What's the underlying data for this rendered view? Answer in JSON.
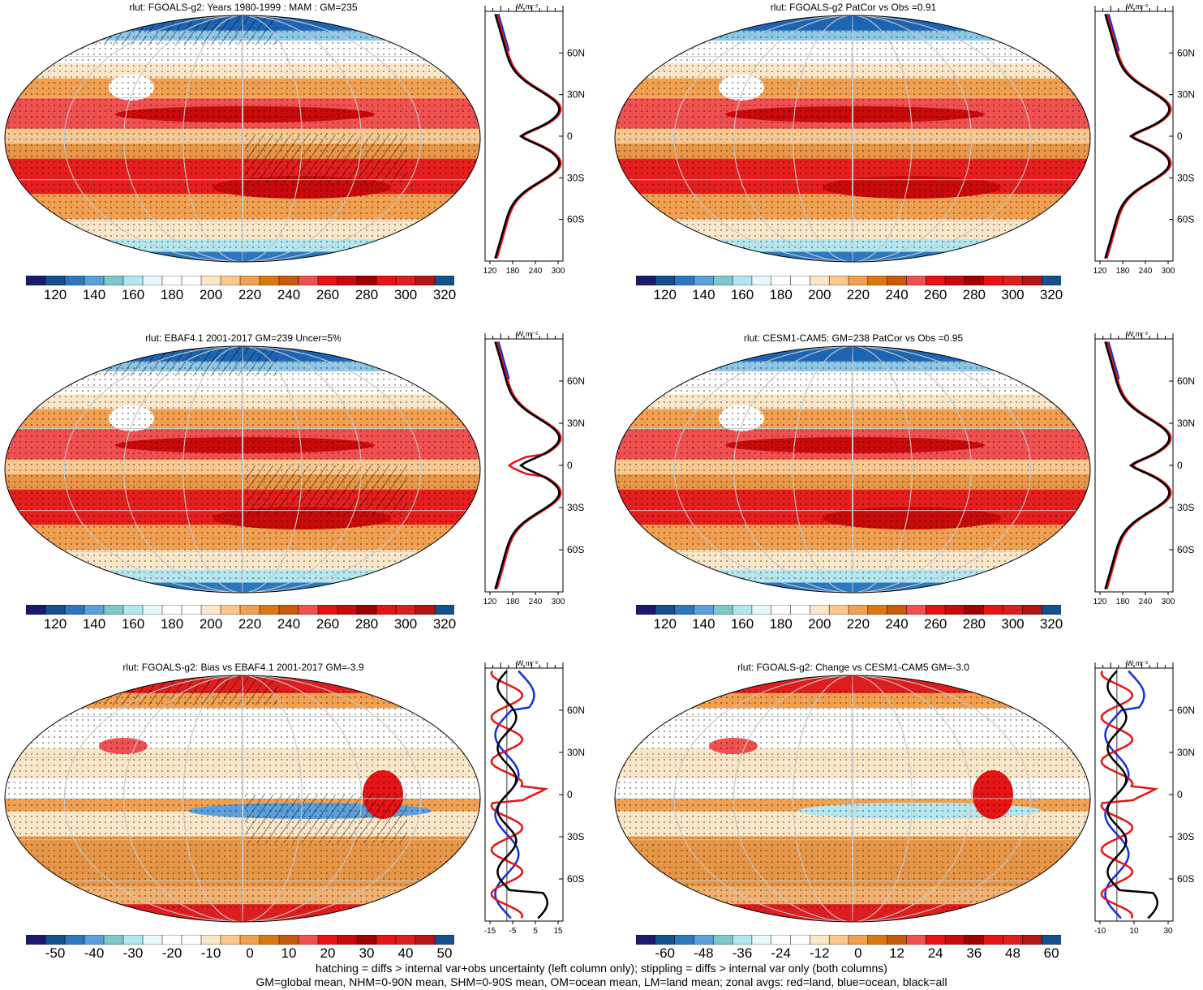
{
  "panels": [
    {
      "id": "p1",
      "title": "rlut: FGOALS-g2: Years 1980-1999 : MAM : GM=235",
      "kind": "abs",
      "hatch": true,
      "cbar_labels": [
        "120",
        "140",
        "160",
        "180",
        "200",
        "220",
        "240",
        "260",
        "280",
        "300",
        "320"
      ],
      "zonal_ticks": [
        "120",
        "180",
        "240",
        "300"
      ]
    },
    {
      "id": "p2",
      "title": "rlut: FGOALS-g2 PatCor vs Obs =0.91",
      "kind": "abs",
      "hatch": false,
      "cbar_labels": [
        "120",
        "140",
        "160",
        "180",
        "200",
        "220",
        "240",
        "260",
        "280",
        "300",
        "320"
      ],
      "zonal_ticks": [
        "120",
        "180",
        "240",
        "300"
      ]
    },
    {
      "id": "p3",
      "title": "rlut: EBAF4.1 2001-2017 GM=239 Uncer=5%",
      "kind": "abs",
      "hatch": true,
      "cbar_labels": [
        "120",
        "140",
        "160",
        "180",
        "200",
        "220",
        "240",
        "260",
        "280",
        "300",
        "320"
      ],
      "zonal_ticks": [
        "120",
        "180",
        "240",
        "300"
      ]
    },
    {
      "id": "p4",
      "title": "rlut: CESM1-CAM5: GM=238 PatCor vs Obs =0.95",
      "kind": "abs",
      "hatch": false,
      "cbar_labels": [
        "120",
        "140",
        "160",
        "180",
        "200",
        "220",
        "240",
        "260",
        "280",
        "300",
        "320"
      ],
      "zonal_ticks": [
        "120",
        "180",
        "240",
        "300"
      ]
    },
    {
      "id": "p5",
      "title": "rlut: FGOALS-g2: Bias vs EBAF4.1 2001-2017 GM=-3.9",
      "kind": "diff",
      "hatch": true,
      "cbar_labels": [
        "-50",
        "-40",
        "-30",
        "-20",
        "-10",
        "0",
        "10",
        "20",
        "30",
        "40",
        "50"
      ],
      "zonal_ticks": [
        "-15",
        "-5",
        "5",
        "15"
      ]
    },
    {
      "id": "p6",
      "title": "rlut: FGOALS-g2: Change vs CESM1-CAM5 GM=-3.0",
      "kind": "diff",
      "hatch": false,
      "cbar_labels": [
        "-60",
        "-48",
        "-36",
        "-24",
        "-12",
        "0",
        "12",
        "24",
        "36",
        "48",
        "60"
      ],
      "zonal_ticks": [
        "-10",
        "10",
        "30"
      ]
    }
  ],
  "zonal_unit": "W m⁻²",
  "lat_labels": [
    "60N",
    "30N",
    "0",
    "30S",
    "60S"
  ],
  "abs_colors": [
    "#1a1a6e",
    "#14508c",
    "#2c78c0",
    "#5aa0dc",
    "#7ec8c8",
    "#b4e6f0",
    "#e6f8fa",
    "#ffffff",
    "#ffffff",
    "#fae6c8",
    "#fac88c",
    "#f0a050",
    "#dc7814",
    "#c85a0a",
    "#f05050",
    "#e61414",
    "#c80a0a",
    "#a00000",
    "#e61414",
    "#dc1e1e",
    "#b41414",
    "#14508c"
  ],
  "diff_colors": [
    "#1a1a6e",
    "#14508c",
    "#2c78c0",
    "#5aa0dc",
    "#7ec8c8",
    "#b4e6f0",
    "#e6f8fa",
    "#ffffff",
    "#ffffff",
    "#fae6c8",
    "#fac88c",
    "#f0a050",
    "#dc7814",
    "#c85a0a",
    "#f05050",
    "#e61414",
    "#c80a0a",
    "#a00000",
    "#e61414",
    "#dc1e1e",
    "#b41414",
    "#14508c"
  ],
  "line_colors": {
    "land": "#e61414",
    "ocean": "#1430dc",
    "all": "#000000"
  },
  "footer": [
    "hatching = diffs > internal var+obs uncertainty (left column only); stippling = diffs > internal var only (both columns)",
    "GM=global mean, NHM=0-90N mean, SHM=0-90S mean, OM=ocean mean, LM=land mean; zonal avgs: red=land, blue=ocean, black=all"
  ]
}
